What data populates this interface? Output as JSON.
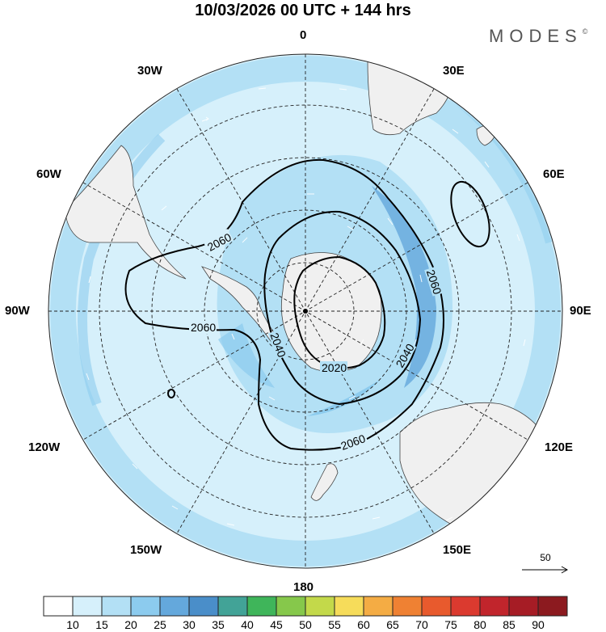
{
  "title": "10/03/2026  00 UTC  + 144 hrs",
  "brand": {
    "name": "MODES",
    "mark": "©"
  },
  "longitudes": {
    "top": "0",
    "bottom": "180",
    "e30": "30E",
    "e60": "60E",
    "e90": "90E",
    "e120": "120E",
    "e150": "150E",
    "w30": "30W",
    "w60": "60W",
    "w90": "90W",
    "w120": "120W",
    "w150": "150W"
  },
  "contours": {
    "c2020": "2020",
    "c2040a": "2040",
    "c2040b": "2040",
    "c2060a": "2060",
    "c2060b": "2060",
    "c2060c": "2060",
    "c2060d": "2060"
  },
  "reference_vector": {
    "value": "50"
  },
  "colorbar": {
    "labels": [
      "10",
      "15",
      "20",
      "25",
      "30",
      "35",
      "40",
      "45",
      "50",
      "55",
      "60",
      "65",
      "70",
      "75",
      "80",
      "85",
      "90"
    ],
    "colors": [
      "#ffffff",
      "#d6f0fb",
      "#b3e0f5",
      "#8ccbee",
      "#64a8dc",
      "#4a8ec9",
      "#42a397",
      "#3fb55a",
      "#86c84b",
      "#c3d94a",
      "#f6dc5a",
      "#f4ac44",
      "#ef8133",
      "#e85a2d",
      "#db3a2f",
      "#c1252c",
      "#a61c25",
      "#8c1a1f"
    ]
  },
  "colors": {
    "land": "#f0f0f0",
    "wind_light": "#d6f0fb",
    "wind_mid": "#b3e0f5",
    "wind_strong": "#8ccbee"
  }
}
